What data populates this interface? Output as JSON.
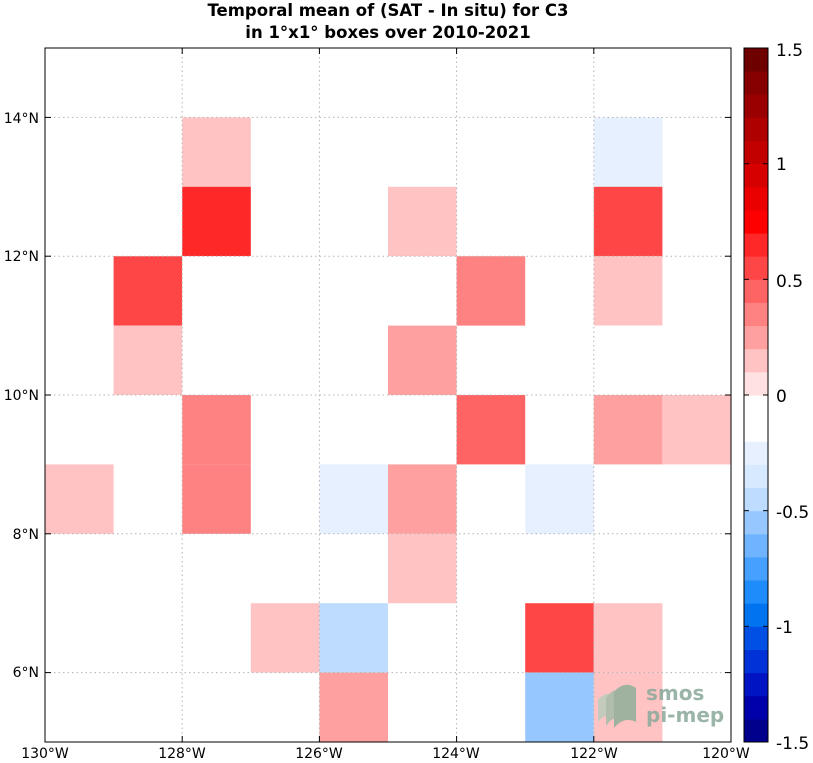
{
  "chart_data": {
    "type": "heatmap",
    "title_lines": [
      "Temporal mean of (SAT - In situ) for C3",
      "in 1°x1° boxes over 2010-2021"
    ],
    "x_range": [
      -130,
      -120
    ],
    "y_range": [
      5,
      15
    ],
    "x_ticks": [
      -130,
      -128,
      -126,
      -124,
      -122,
      -120
    ],
    "x_tick_labels": [
      "130°W",
      "128°W",
      "126°W",
      "124°W",
      "122°W",
      "120°W"
    ],
    "y_ticks": [
      6,
      8,
      10,
      12,
      14
    ],
    "y_tick_labels": [
      "6°N",
      "8°N",
      "10°N",
      "12°N",
      "14°N"
    ],
    "grid": true,
    "colorbar": {
      "range": [
        -1.5,
        1.5
      ],
      "step": 0.1,
      "ticks": [
        -1.5,
        -1,
        -0.5,
        0,
        0.5,
        1,
        1.5
      ],
      "tick_labels": [
        "-1.5",
        "-1",
        "-0.5",
        "0",
        "0.5",
        "1",
        "1.5"
      ],
      "colors": [
        "#00008c",
        "#0000aa",
        "#0014c3",
        "#0032d7",
        "#0050e6",
        "#0073f0",
        "#1e8cfa",
        "#46a0ff",
        "#6eb4ff",
        "#96c8ff",
        "#bedcff",
        "#d7e9ff",
        "#e6f0ff",
        "#ffffff",
        "#ffffff",
        "#ffe1e1",
        "#ffc3c3",
        "#ffa0a0",
        "#ff8282",
        "#ff6464",
        "#ff4646",
        "#ff2828",
        "#ff0000",
        "#eb0000",
        "#d70000",
        "#c30000",
        "#af0000",
        "#9b0000",
        "#870000",
        "#6e0000"
      ]
    },
    "cells": [
      {
        "lon": -123,
        "lat": 14,
        "value": -0.05
      },
      {
        "lon": -128,
        "lat": 13,
        "value": 0.15
      },
      {
        "lon": -124,
        "lat": 13,
        "value": -0.1
      },
      {
        "lon": -122,
        "lat": 13,
        "value": -0.25
      },
      {
        "lon": -128,
        "lat": 12,
        "value": 0.6
      },
      {
        "lon": -125,
        "lat": 12,
        "value": 0.15
      },
      {
        "lon": -122,
        "lat": 12,
        "value": 0.5
      },
      {
        "lon": -129,
        "lat": 11,
        "value": 0.5
      },
      {
        "lon": -128,
        "lat": 11,
        "value": -0.05
      },
      {
        "lon": -124,
        "lat": 11,
        "value": 0.35
      },
      {
        "lon": -122,
        "lat": 11,
        "value": 0.15
      },
      {
        "lon": -129,
        "lat": 10,
        "value": 0.15
      },
      {
        "lon": -128,
        "lat": 10,
        "value": -0.05
      },
      {
        "lon": -125,
        "lat": 10,
        "value": 0.25
      },
      {
        "lon": -122,
        "lat": 10,
        "value": -0.05
      },
      {
        "lon": -128,
        "lat": 9,
        "value": 0.35
      },
      {
        "lon": -124,
        "lat": 9,
        "value": 0.45
      },
      {
        "lon": -122,
        "lat": 9,
        "value": 0.25
      },
      {
        "lon": -121,
        "lat": 9,
        "value": 0.15
      },
      {
        "lon": -130,
        "lat": 8,
        "value": 0.15
      },
      {
        "lon": -128,
        "lat": 8,
        "value": 0.35
      },
      {
        "lon": -126,
        "lat": 8,
        "value": -0.25
      },
      {
        "lon": -125,
        "lat": 8,
        "value": 0.25
      },
      {
        "lon": -123,
        "lat": 8,
        "value": -0.25
      },
      {
        "lon": -129,
        "lat": 7,
        "value": -0.1
      },
      {
        "lon": -127,
        "lat": 7,
        "value": -0.1
      },
      {
        "lon": -126,
        "lat": 7,
        "value": -0.1
      },
      {
        "lon": -125,
        "lat": 7,
        "value": 0.15
      },
      {
        "lon": -124,
        "lat": 7,
        "value": -0.05
      },
      {
        "lon": -121,
        "lat": 7,
        "value": -0.1
      },
      {
        "lon": -127,
        "lat": 6,
        "value": 0.15
      },
      {
        "lon": -126,
        "lat": 6,
        "value": -0.45
      },
      {
        "lon": -124,
        "lat": 6,
        "value": -0.05
      },
      {
        "lon": -123,
        "lat": 6,
        "value": 0.5
      },
      {
        "lon": -122,
        "lat": 6,
        "value": 0.15
      },
      {
        "lon": -126,
        "lat": 5,
        "value": 0.25
      },
      {
        "lon": -124,
        "lat": 5,
        "value": -0.05
      },
      {
        "lon": -123,
        "lat": 5,
        "value": -0.55
      },
      {
        "lon": -122,
        "lat": 5,
        "value": 0.15
      }
    ]
  },
  "logo": {
    "line1": "smos",
    "line2": "pi-mep"
  }
}
